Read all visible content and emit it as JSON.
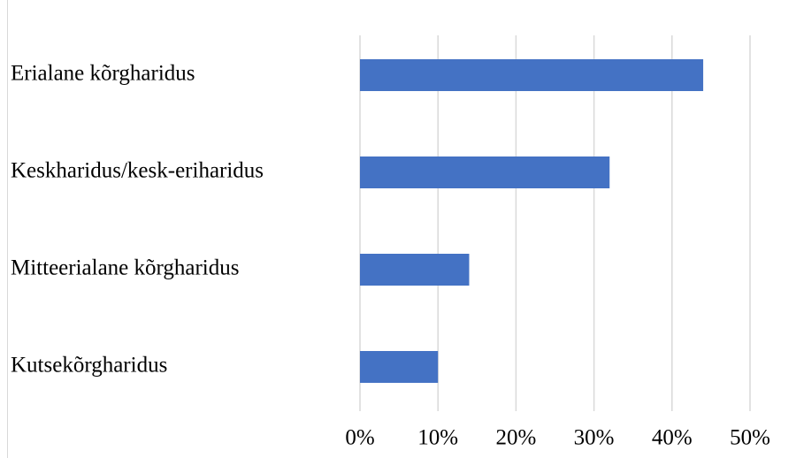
{
  "chart_data": {
    "type": "barh",
    "categories": [
      "Erialane kõrgharidus",
      "Keskharidus/kesk-eriharidus",
      "Mitteerialane kõrgharidus",
      "Kutsekõrgharidus"
    ],
    "values": [
      44,
      32,
      14,
      10
    ],
    "color": "#4472c4",
    "xlim": [
      0,
      50
    ],
    "xticks": [
      {
        "value": 0,
        "label": "0%"
      },
      {
        "value": 10,
        "label": "10%"
      },
      {
        "value": 20,
        "label": "20%"
      },
      {
        "value": 30,
        "label": "30%"
      },
      {
        "value": 40,
        "label": "40%"
      },
      {
        "value": 50,
        "label": "50%"
      }
    ],
    "grid": true
  }
}
